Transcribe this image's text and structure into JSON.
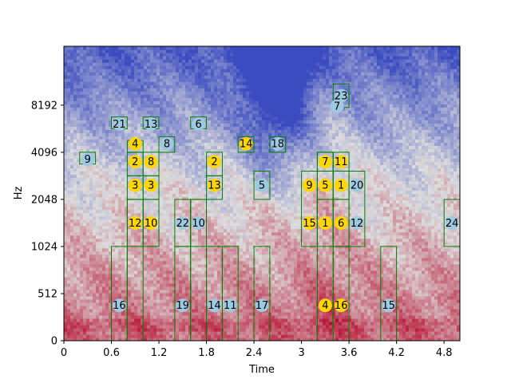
{
  "chart_data": {
    "type": "heatmap",
    "title": "",
    "xlabel": "Time",
    "ylabel": "Hz",
    "xlim": [
      0,
      5.0
    ],
    "ylim_bins": [
      0,
      6.25
    ],
    "x_ticks": [
      {
        "value": 0,
        "label": "0"
      },
      {
        "value": 0.6,
        "label": "0.6"
      },
      {
        "value": 1.2,
        "label": "1.2"
      },
      {
        "value": 1.8,
        "label": "1.8"
      },
      {
        "value": 2.4,
        "label": "2.4"
      },
      {
        "value": 3.0,
        "label": "3"
      },
      {
        "value": 3.6,
        "label": "3.6"
      },
      {
        "value": 4.2,
        "label": "4.2"
      },
      {
        "value": 4.8,
        "label": "4.8"
      }
    ],
    "y_ticks": [
      {
        "value": 0,
        "label": "0"
      },
      {
        "value": 1,
        "label": "512"
      },
      {
        "value": 2,
        "label": "1024"
      },
      {
        "value": 3,
        "label": "2048"
      },
      {
        "value": 4,
        "label": "4096"
      },
      {
        "value": 5,
        "label": "8192"
      }
    ],
    "colormap": {
      "low": "#3b4cc0",
      "mid": "#dddddd",
      "high": "#b40426"
    },
    "box_color": "#008000",
    "marker_colors": {
      "blue": "#9ecae1",
      "gold": "#ffd700"
    },
    "boxes": [
      {
        "t0": 0.2,
        "t1": 0.4,
        "b0": 3.75,
        "b1": 4.0
      },
      {
        "t0": 0.6,
        "t1": 0.8,
        "b0": 0,
        "b1": 2.0
      },
      {
        "t0": 0.6,
        "t1": 0.8,
        "b0": 4.5,
        "b1": 4.75
      },
      {
        "t0": 0.8,
        "t1": 1.0,
        "b0": 0,
        "b1": 3.0
      },
      {
        "t0": 0.8,
        "t1": 1.0,
        "b0": 2.0,
        "b1": 3.0
      },
      {
        "t0": 0.8,
        "t1": 1.0,
        "b0": 3.0,
        "b1": 3.5
      },
      {
        "t0": 0.8,
        "t1": 1.0,
        "b0": 3.5,
        "b1": 4.0
      },
      {
        "t0": 0.8,
        "t1": 1.0,
        "b0": 4.0,
        "b1": 4.25
      },
      {
        "t0": 1.0,
        "t1": 1.2,
        "b0": 2.0,
        "b1": 3.0
      },
      {
        "t0": 1.0,
        "t1": 1.2,
        "b0": 3.0,
        "b1": 3.5
      },
      {
        "t0": 1.0,
        "t1": 1.2,
        "b0": 3.5,
        "b1": 4.0
      },
      {
        "t0": 1.0,
        "t1": 1.2,
        "b0": 4.5,
        "b1": 4.75
      },
      {
        "t0": 1.2,
        "t1": 1.4,
        "b0": 4.0,
        "b1": 4.33
      },
      {
        "t0": 1.4,
        "t1": 1.6,
        "b0": 0,
        "b1": 2.0
      },
      {
        "t0": 1.4,
        "t1": 1.6,
        "b0": 2.0,
        "b1": 3.0
      },
      {
        "t0": 1.6,
        "t1": 1.8,
        "b0": 0,
        "b1": 3.0
      },
      {
        "t0": 1.6,
        "t1": 1.8,
        "b0": 2.0,
        "b1": 3.0
      },
      {
        "t0": 1.6,
        "t1": 1.8,
        "b0": 4.5,
        "b1": 4.75
      },
      {
        "t0": 1.8,
        "t1": 2.0,
        "b0": 0,
        "b1": 2.0
      },
      {
        "t0": 1.8,
        "t1": 2.0,
        "b0": 3.0,
        "b1": 3.5
      },
      {
        "t0": 1.8,
        "t1": 2.0,
        "b0": 3.5,
        "b1": 4.0
      },
      {
        "t0": 2.0,
        "t1": 2.2,
        "b0": 0,
        "b1": 2.0
      },
      {
        "t0": 2.2,
        "t1": 2.4,
        "b0": 4.0,
        "b1": 4.33
      },
      {
        "t0": 2.4,
        "t1": 2.6,
        "b0": 0,
        "b1": 2.0
      },
      {
        "t0": 2.4,
        "t1": 2.6,
        "b0": 3.0,
        "b1": 3.6
      },
      {
        "t0": 2.6,
        "t1": 2.8,
        "b0": 4.0,
        "b1": 4.33
      },
      {
        "t0": 3.0,
        "t1": 3.2,
        "b0": 2.0,
        "b1": 3.6
      },
      {
        "t0": 3.2,
        "t1": 3.4,
        "b0": 0,
        "b1": 4.0
      },
      {
        "t0": 3.2,
        "t1": 3.4,
        "b0": 2.0,
        "b1": 3.0
      },
      {
        "t0": 3.2,
        "t1": 3.4,
        "b0": 3.0,
        "b1": 3.6
      },
      {
        "t0": 3.2,
        "t1": 3.4,
        "b0": 3.6,
        "b1": 4.0
      },
      {
        "t0": 3.4,
        "t1": 3.6,
        "b0": 0,
        "b1": 2.0
      },
      {
        "t0": 3.4,
        "t1": 3.6,
        "b0": 2.0,
        "b1": 3.0
      },
      {
        "t0": 3.4,
        "t1": 3.6,
        "b0": 3.0,
        "b1": 3.6
      },
      {
        "t0": 3.4,
        "t1": 3.6,
        "b0": 3.6,
        "b1": 4.0
      },
      {
        "t0": 3.4,
        "t1": 3.6,
        "b0": 4.95,
        "b1": 5.45
      },
      {
        "t0": 3.6,
        "t1": 3.8,
        "b0": 2.0,
        "b1": 3.6
      },
      {
        "t0": 4.0,
        "t1": 4.2,
        "b0": 0,
        "b1": 2.0
      },
      {
        "t0": 4.8,
        "t1": 5.0,
        "b0": 2.0,
        "b1": 3.0
      }
    ],
    "markers": [
      {
        "label": "9",
        "t": 0.3,
        "b": 3.85,
        "color": "blue"
      },
      {
        "label": "21",
        "t": 0.7,
        "b": 4.6,
        "color": "blue"
      },
      {
        "label": "13",
        "t": 1.1,
        "b": 4.6,
        "color": "blue"
      },
      {
        "label": "6",
        "t": 1.7,
        "b": 4.6,
        "color": "blue"
      },
      {
        "label": "8",
        "t": 1.3,
        "b": 4.18,
        "color": "blue"
      },
      {
        "label": "18",
        "t": 2.7,
        "b": 4.18,
        "color": "blue"
      },
      {
        "label": "23",
        "t": 3.5,
        "b": 5.2,
        "color": "blue"
      },
      {
        "label": "7",
        "t": 3.45,
        "b": 4.98,
        "color": "blue"
      },
      {
        "label": "5",
        "t": 2.5,
        "b": 3.3,
        "color": "blue"
      },
      {
        "label": "20",
        "t": 3.7,
        "b": 3.3,
        "color": "blue"
      },
      {
        "label": "22",
        "t": 1.5,
        "b": 2.5,
        "color": "blue"
      },
      {
        "label": "10",
        "t": 1.7,
        "b": 2.5,
        "color": "blue"
      },
      {
        "label": "12",
        "t": 3.7,
        "b": 2.5,
        "color": "blue"
      },
      {
        "label": "24",
        "t": 4.9,
        "b": 2.5,
        "color": "blue"
      },
      {
        "label": "16",
        "t": 0.7,
        "b": 0.75,
        "color": "blue"
      },
      {
        "label": "19",
        "t": 1.5,
        "b": 0.75,
        "color": "blue"
      },
      {
        "label": "14",
        "t": 1.9,
        "b": 0.75,
        "color": "blue"
      },
      {
        "label": "11",
        "t": 2.1,
        "b": 0.75,
        "color": "blue"
      },
      {
        "label": "17",
        "t": 2.5,
        "b": 0.75,
        "color": "blue"
      },
      {
        "label": "15",
        "t": 4.1,
        "b": 0.75,
        "color": "blue"
      },
      {
        "label": "4",
        "t": 0.9,
        "b": 4.18,
        "color": "gold"
      },
      {
        "label": "2",
        "t": 0.9,
        "b": 3.8,
        "color": "gold"
      },
      {
        "label": "8",
        "t": 1.1,
        "b": 3.8,
        "color": "gold"
      },
      {
        "label": "14",
        "t": 2.3,
        "b": 4.18,
        "color": "gold"
      },
      {
        "label": "2",
        "t": 1.9,
        "b": 3.8,
        "color": "gold"
      },
      {
        "label": "7",
        "t": 3.3,
        "b": 3.8,
        "color": "gold"
      },
      {
        "label": "11",
        "t": 3.5,
        "b": 3.8,
        "color": "gold"
      },
      {
        "label": "3",
        "t": 0.9,
        "b": 3.3,
        "color": "gold"
      },
      {
        "label": "3",
        "t": 1.1,
        "b": 3.3,
        "color": "gold"
      },
      {
        "label": "13",
        "t": 1.9,
        "b": 3.3,
        "color": "gold"
      },
      {
        "label": "9",
        "t": 3.1,
        "b": 3.3,
        "color": "gold"
      },
      {
        "label": "5",
        "t": 3.3,
        "b": 3.3,
        "color": "gold"
      },
      {
        "label": "1",
        "t": 3.5,
        "b": 3.3,
        "color": "gold"
      },
      {
        "label": "12",
        "t": 0.9,
        "b": 2.5,
        "color": "gold"
      },
      {
        "label": "10",
        "t": 1.1,
        "b": 2.5,
        "color": "gold"
      },
      {
        "label": "15",
        "t": 3.1,
        "b": 2.5,
        "color": "gold"
      },
      {
        "label": "1",
        "t": 3.3,
        "b": 2.5,
        "color": "gold"
      },
      {
        "label": "6",
        "t": 3.5,
        "b": 2.5,
        "color": "gold"
      },
      {
        "label": "4",
        "t": 3.3,
        "b": 0.75,
        "color": "gold"
      },
      {
        "label": "16",
        "t": 3.5,
        "b": 0.75,
        "color": "gold"
      }
    ]
  }
}
